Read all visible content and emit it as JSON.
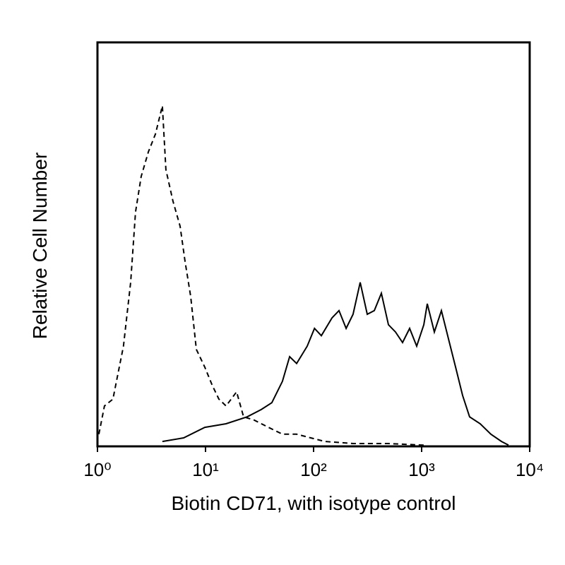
{
  "chart_data": {
    "type": "line",
    "x_label": "Biotin CD71, with isotype control",
    "y_label": "Relative Cell Number",
    "x_scale": "log",
    "xlim": [
      1,
      10000
    ],
    "xticks": [
      {
        "value": 1,
        "label": "10⁰"
      },
      {
        "value": 10,
        "label": "10¹"
      },
      {
        "value": 100,
        "label": "10²"
      },
      {
        "value": 1000,
        "label": "10³"
      },
      {
        "value": 10000,
        "label": "10⁴"
      }
    ],
    "ylim": [
      0,
      100
    ],
    "grid": false,
    "series": [
      {
        "color": "#000000",
        "line_style": "dashed",
        "x": [
          1.03,
          1.16,
          1.39,
          1.74,
          2.03,
          2.25,
          2.54,
          2.96,
          3.44,
          3.99,
          4.3,
          5.0,
          5.82,
          6.46,
          7.29,
          8.22,
          9.85,
          11.5,
          13.3,
          15.5,
          19.4,
          22.5,
          28.2,
          38.2,
          51.5,
          69.7,
          94.2,
          127,
          232,
          493,
          1047
        ],
        "values": [
          3.0,
          10.0,
          11.7,
          24.8,
          40.6,
          58.0,
          66.8,
          72.9,
          77.3,
          84.3,
          68.5,
          60.7,
          54.5,
          45.8,
          37.1,
          24.0,
          19.6,
          15.2,
          11.7,
          10.0,
          13.5,
          7.3,
          6.5,
          4.7,
          3.0,
          3.0,
          2.1,
          1.2,
          0.7,
          0.7,
          0.3
        ]
      },
      {
        "color": "#000000",
        "line_style": "solid",
        "x": [
          3.99,
          6.27,
          9.85,
          15.5,
          24.3,
          32.8,
          41.1,
          51.5,
          60.0,
          69.7,
          87.3,
          102,
          118,
          148,
          172,
          200,
          232,
          270,
          314,
          365,
          424,
          493,
          573,
          666,
          774,
          900,
          1047,
          1128,
          1312,
          1525,
          1771,
          2061,
          2393,
          2780,
          3483,
          4375,
          5483,
          6368
        ],
        "values": [
          1.2,
          2.1,
          4.7,
          5.6,
          7.3,
          9.1,
          10.8,
          16.1,
          22.2,
          20.5,
          24.8,
          29.2,
          27.4,
          31.8,
          33.6,
          29.2,
          32.7,
          40.6,
          32.7,
          33.6,
          37.9,
          30.1,
          28.3,
          25.7,
          29.2,
          24.8,
          30.1,
          35.3,
          28.3,
          33.6,
          26.6,
          19.6,
          12.6,
          7.3,
          5.6,
          3.0,
          1.2,
          0.3
        ]
      }
    ]
  }
}
